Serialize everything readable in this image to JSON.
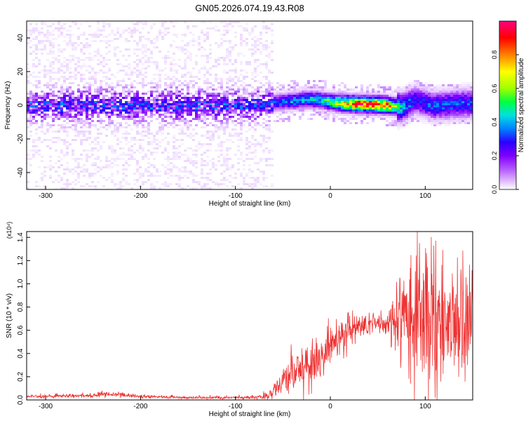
{
  "title": "GN05.2026.074.19.43.R08",
  "chart_data": [
    {
      "type": "heatmap",
      "xlabel": "Height of straight line (km)",
      "ylabel": "Frequency (Hz)",
      "xlim": [
        -320,
        150
      ],
      "ylim": [
        -50,
        50
      ],
      "xticks": [
        -300,
        -200,
        -100,
        0,
        100
      ],
      "yticks": [
        -40,
        -20,
        0,
        20,
        40
      ],
      "colorbar": {
        "label": "Normalized spectral amplitude",
        "range": [
          0.0,
          1.0
        ],
        "ticks": [
          "0.0",
          "0.2",
          "0.4",
          "0.6",
          "0.8"
        ],
        "tick_values": [
          0.0,
          0.2,
          0.4,
          0.6,
          0.8
        ],
        "colors": [
          "#ffffff",
          "#e6c8ff",
          "#b45aff",
          "#7f00ff",
          "#2a00ff",
          "#0080ff",
          "#00e0e0",
          "#00ff40",
          "#a0ff00",
          "#ffff00",
          "#ff8000",
          "#ff0000",
          "#ff0080"
        ]
      },
      "noise_region_end_km": -60,
      "ridge": [
        {
          "x": -60,
          "y": 1.5,
          "amp": 0.35
        },
        {
          "x": -40,
          "y": 2.5,
          "amp": 0.45
        },
        {
          "x": -25,
          "y": 3.5,
          "amp": 0.5
        },
        {
          "x": -10,
          "y": 3.0,
          "amp": 0.5
        },
        {
          "x": 5,
          "y": 1.5,
          "amp": 0.7
        },
        {
          "x": 20,
          "y": 0.8,
          "amp": 0.85
        },
        {
          "x": 40,
          "y": 0.5,
          "amp": 0.95
        },
        {
          "x": 60,
          "y": 0.0,
          "amp": 0.9
        },
        {
          "x": 75,
          "y": -1.5,
          "amp": 0.5
        },
        {
          "x": 90,
          "y": 3.0,
          "amp": 0.35
        },
        {
          "x": 110,
          "y": -0.5,
          "amp": 0.4
        },
        {
          "x": 130,
          "y": 0.5,
          "amp": 0.4
        },
        {
          "x": 150,
          "y": 1.0,
          "amp": 0.4
        }
      ]
    },
    {
      "type": "line",
      "xlabel": "Height of straight line (km)",
      "ylabel": "SNR (10 * v/v)",
      "yscale_label": "(x10⁴)",
      "xlim": [
        -320,
        150
      ],
      "ylim": [
        0,
        1.45
      ],
      "xticks": [
        -300,
        -200,
        -100,
        0,
        100
      ],
      "yticks": [
        "0.0",
        "0.2",
        "0.4",
        "0.6",
        "0.8",
        "1.0",
        "1.2",
        "1.4"
      ],
      "ytick_values": [
        0.0,
        0.2,
        0.4,
        0.6,
        0.8,
        1.0,
        1.2,
        1.4
      ],
      "color": "#ee3333",
      "envelope": {
        "x": [
          -320,
          -250,
          -230,
          -200,
          -150,
          -100,
          -75,
          -62,
          -50,
          -40,
          -25,
          -10,
          0,
          10,
          25,
          40,
          60,
          70,
          80,
          90,
          100,
          110,
          125,
          140,
          150
        ],
        "mean": [
          0.03,
          0.04,
          0.05,
          0.03,
          0.02,
          0.02,
          0.025,
          0.06,
          0.15,
          0.22,
          0.3,
          0.35,
          0.45,
          0.55,
          0.62,
          0.66,
          0.65,
          0.66,
          0.68,
          0.7,
          0.72,
          0.68,
          0.7,
          0.7,
          0.7
        ],
        "spread": [
          0.012,
          0.015,
          0.02,
          0.012,
          0.01,
          0.01,
          0.015,
          0.05,
          0.1,
          0.15,
          0.2,
          0.2,
          0.2,
          0.15,
          0.12,
          0.1,
          0.1,
          0.3,
          0.5,
          0.6,
          0.55,
          0.45,
          0.4,
          0.45,
          0.45
        ]
      }
    }
  ]
}
